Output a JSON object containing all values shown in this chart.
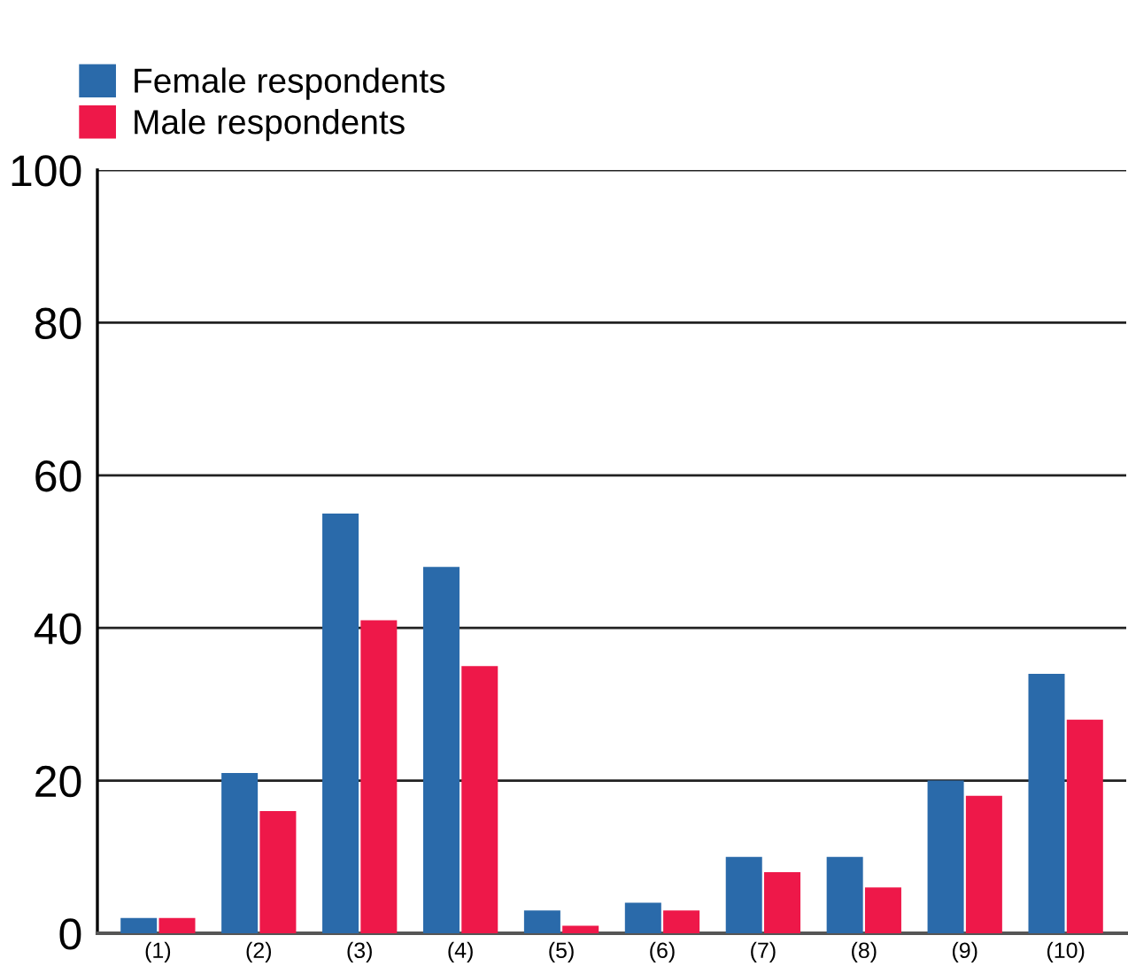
{
  "chart_data": {
    "type": "bar",
    "categories": [
      "(1)",
      "(2)",
      "(3)",
      "(4)",
      "(5)",
      "(6)",
      "(7)",
      "(8)",
      "(9)",
      "(10)"
    ],
    "series": [
      {
        "name": "Female respondents",
        "color": "#2a6aaa",
        "values": [
          2,
          21,
          55,
          48,
          3,
          4,
          10,
          10,
          20,
          34
        ]
      },
      {
        "name": "Male respondents",
        "color": "#ee1849",
        "values": [
          2,
          16,
          41,
          35,
          1,
          3,
          8,
          6,
          18,
          28
        ]
      }
    ],
    "ylim": [
      0,
      100
    ],
    "yticks": [
      0,
      20,
      40,
      60,
      80,
      100
    ],
    "grid": "y",
    "legend": "top left"
  }
}
